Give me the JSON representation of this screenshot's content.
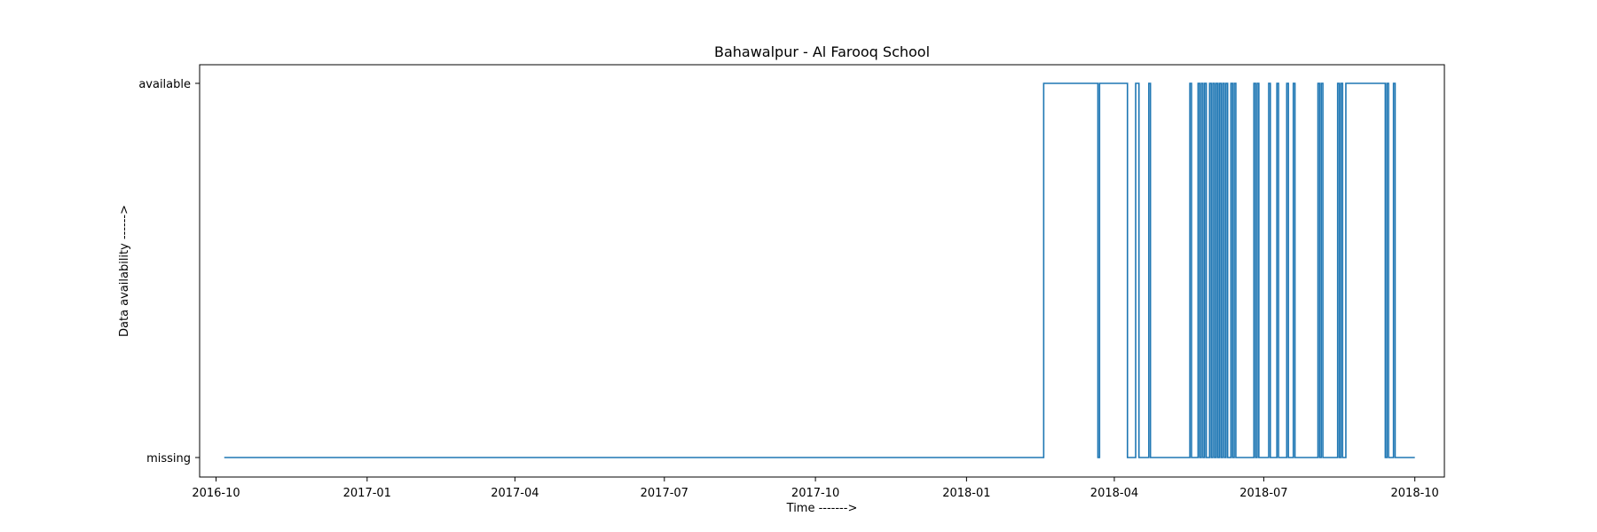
{
  "chart_data": {
    "type": "line",
    "title": "Bahawalpur - Al Farooq School",
    "xlabel": "Time ------->",
    "ylabel": "Data availability ------>",
    "x_ticks": [
      "2016-10",
      "2017-01",
      "2017-04",
      "2017-07",
      "2017-10",
      "2018-01",
      "2018-04",
      "2018-07",
      "2018-10"
    ],
    "y_ticks": [
      "missing",
      "available"
    ],
    "xlim": [
      "2016-09-21",
      "2018-10-19"
    ],
    "grid": false,
    "legend": "none",
    "series": [
      {
        "color": "#1f77b4",
        "step": "post",
        "x": [
          "2016-10-06",
          "2018-02-17",
          "2018-03-22",
          "2018-03-23",
          "2018-04-09",
          "2018-04-14",
          "2018-04-16",
          "2018-04-22",
          "2018-04-23",
          "2018-05-17",
          "2018-05-18",
          "2018-05-22",
          "2018-05-23",
          "2018-05-24",
          "2018-05-25",
          "2018-05-26",
          "2018-05-27",
          "2018-05-29",
          "2018-05-30",
          "2018-05-31",
          "2018-06-01",
          "2018-06-02",
          "2018-06-03",
          "2018-06-04",
          "2018-06-05",
          "2018-06-06",
          "2018-06-07",
          "2018-06-08",
          "2018-06-09",
          "2018-06-11",
          "2018-06-12",
          "2018-06-13",
          "2018-06-14",
          "2018-06-25",
          "2018-06-26",
          "2018-06-27",
          "2018-06-28",
          "2018-07-04",
          "2018-07-05",
          "2018-07-09",
          "2018-07-10",
          "2018-07-15",
          "2018-07-16",
          "2018-07-19",
          "2018-07-20",
          "2018-08-03",
          "2018-08-04",
          "2018-08-05",
          "2018-08-06",
          "2018-08-15",
          "2018-08-16",
          "2018-08-17",
          "2018-08-18",
          "2018-08-20",
          "2018-09-13",
          "2018-09-14",
          "2018-09-15",
          "2018-09-18",
          "2018-09-19",
          "2018-10-01"
        ],
        "y": [
          0,
          1,
          0,
          1,
          0,
          1,
          0,
          1,
          0,
          1,
          0,
          1,
          0,
          1,
          0,
          1,
          0,
          1,
          0,
          1,
          0,
          1,
          0,
          1,
          0,
          1,
          0,
          1,
          0,
          1,
          0,
          1,
          0,
          1,
          0,
          1,
          0,
          1,
          0,
          1,
          0,
          1,
          0,
          1,
          0,
          1,
          0,
          1,
          0,
          1,
          0,
          1,
          0,
          1,
          0,
          1,
          0,
          1,
          0,
          0
        ]
      }
    ]
  }
}
